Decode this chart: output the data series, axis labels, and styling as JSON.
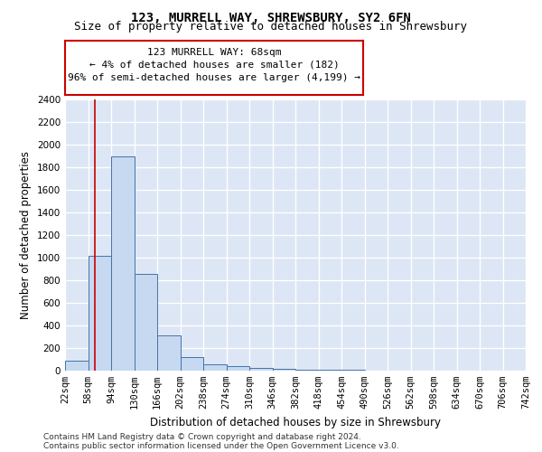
{
  "title1": "123, MURRELL WAY, SHREWSBURY, SY2 6FN",
  "title2": "Size of property relative to detached houses in Shrewsbury",
  "xlabel": "Distribution of detached houses by size in Shrewsbury",
  "ylabel": "Number of detached properties",
  "bin_edges": [
    22,
    58,
    94,
    130,
    166,
    202,
    238,
    274,
    310,
    346,
    382,
    418,
    454,
    490,
    526,
    562,
    598,
    634,
    670,
    706,
    742
  ],
  "bar_heights": [
    90,
    1020,
    1900,
    860,
    310,
    120,
    55,
    40,
    25,
    15,
    10,
    8,
    6,
    4,
    3,
    3,
    2,
    2,
    2,
    1
  ],
  "bar_color": "#c6d9f0",
  "bar_edge_color": "#4472a8",
  "vline_x": 68,
  "vline_color": "#cc0000",
  "annotation_text": "123 MURRELL WAY: 68sqm\n← 4% of detached houses are smaller (182)\n96% of semi-detached houses are larger (4,199) →",
  "annotation_box_color": "#ffffff",
  "annotation_box_edge": "#cc0000",
  "ylim": [
    0,
    2400
  ],
  "yticks": [
    0,
    200,
    400,
    600,
    800,
    1000,
    1200,
    1400,
    1600,
    1800,
    2000,
    2200,
    2400
  ],
  "footer1": "Contains HM Land Registry data © Crown copyright and database right 2024.",
  "footer2": "Contains public sector information licensed under the Open Government Licence v3.0.",
  "bg_color": "#dce6f5",
  "grid_color": "#ffffff",
  "title_fontsize": 10,
  "subtitle_fontsize": 9,
  "axis_label_fontsize": 8.5,
  "tick_fontsize": 7.5,
  "annotation_fontsize": 8,
  "footer_fontsize": 6.5
}
